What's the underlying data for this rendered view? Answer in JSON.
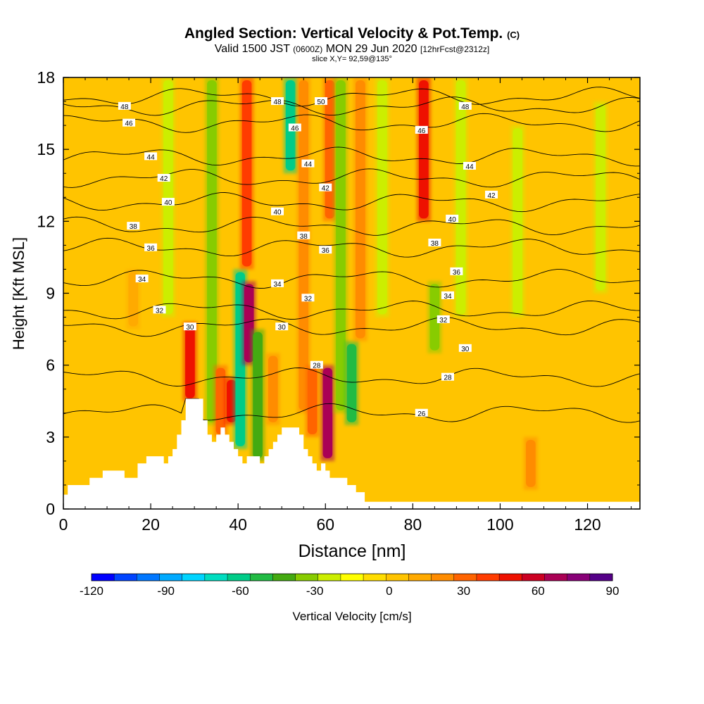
{
  "chart_data": {
    "type": "heatmap",
    "title": {
      "main": "Angled Section: Vertical Velocity & Pot.Temp.",
      "main_unit": "(C)",
      "valid_prefix": "Valid 1500 JST",
      "valid_utc": "(0600Z)",
      "valid_date": "MON 29 Jun 2020",
      "valid_fcst": "[12hrFcst@2312z]",
      "slice": "slice X,Y= 92,59@135°"
    },
    "xlabel": "Distance [nm]",
    "ylabel": "Height [Kft MSL]",
    "xlim": [
      0,
      132
    ],
    "ylim": [
      0,
      18
    ],
    "x_ticks": [
      0,
      20,
      40,
      60,
      80,
      100,
      120
    ],
    "x_tick_labels": [
      "0",
      "20",
      "40",
      "60",
      "80",
      "100",
      "120"
    ],
    "y_ticks": [
      0,
      3,
      6,
      9,
      12,
      15,
      18
    ],
    "y_tick_labels": [
      "0",
      "3",
      "6",
      "9",
      "12",
      "15",
      "18"
    ],
    "colorbar": {
      "label": "Vertical Velocity [cm/s]",
      "min": -120,
      "max": 90,
      "step": 10,
      "tick_values": [
        -120,
        -90,
        -60,
        -30,
        0,
        30,
        60,
        90
      ],
      "tick_labels": [
        "-120",
        "-90",
        "-60",
        "-30",
        "0",
        "30",
        "60",
        "90"
      ],
      "colors": [
        "#0000ff",
        "#0044ff",
        "#0077ff",
        "#00aaff",
        "#00d4ff",
        "#00ddc0",
        "#00cc88",
        "#22bb44",
        "#44aa11",
        "#88cc00",
        "#ccee00",
        "#ffff00",
        "#ffdd00",
        "#ffc400",
        "#ffaa00",
        "#ff8c00",
        "#ff6400",
        "#ff3c00",
        "#ee1100",
        "#cc0022",
        "#aa0055",
        "#880077",
        "#550088"
      ]
    },
    "vertical_velocity_columns": [
      {
        "x": 16,
        "ybot": 7.5,
        "ytop": 10,
        "value": 20
      },
      {
        "x": 24,
        "ybot": 8,
        "ytop": 18,
        "value": -20
      },
      {
        "x": 29,
        "ybot": 4.5,
        "ytop": 7.8,
        "value": 60
      },
      {
        "x": 34,
        "ybot": 3.5,
        "ytop": 18,
        "value": -30
      },
      {
        "x": 36,
        "ybot": 3,
        "ytop": 6,
        "value": 45
      },
      {
        "x": 38.5,
        "ybot": 3.5,
        "ytop": 5.5,
        "value": 62
      },
      {
        "x": 40.5,
        "ybot": 2.5,
        "ytop": 10,
        "value": -55
      },
      {
        "x": 42.5,
        "ybot": 6,
        "ytop": 9.5,
        "value": 85
      },
      {
        "x": 42,
        "ybot": 10,
        "ytop": 18,
        "value": 50
      },
      {
        "x": 44.5,
        "ybot": 2,
        "ytop": 7.5,
        "value": -40
      },
      {
        "x": 48,
        "ybot": 3.5,
        "ytop": 6.5,
        "value": 35
      },
      {
        "x": 52,
        "ybot": 14,
        "ytop": 18,
        "value": -60
      },
      {
        "x": 55,
        "ybot": 4,
        "ytop": 18,
        "value": 30
      },
      {
        "x": 57,
        "ybot": 3,
        "ytop": 6,
        "value": 45
      },
      {
        "x": 60.5,
        "ybot": 2,
        "ytop": 6,
        "value": 80
      },
      {
        "x": 61,
        "ybot": 12,
        "ytop": 18,
        "value": 45
      },
      {
        "x": 63.5,
        "ybot": 4,
        "ytop": 18,
        "value": -30
      },
      {
        "x": 66,
        "ybot": 3.5,
        "ytop": 7,
        "value": -45
      },
      {
        "x": 68,
        "ybot": 7,
        "ytop": 18,
        "value": 30
      },
      {
        "x": 73,
        "ybot": 8,
        "ytop": 18,
        "value": -20
      },
      {
        "x": 82.5,
        "ybot": 12,
        "ytop": 18,
        "value": 65
      },
      {
        "x": 85,
        "ybot": 6.5,
        "ytop": 9.5,
        "value": -30
      },
      {
        "x": 91,
        "ybot": 8,
        "ytop": 18,
        "value": -20
      },
      {
        "x": 104,
        "ybot": 8,
        "ytop": 16,
        "value": -15
      },
      {
        "x": 107,
        "ybot": 0.8,
        "ytop": 3,
        "value": 30
      },
      {
        "x": 123,
        "ybot": 9,
        "ytop": 17,
        "value": -15
      }
    ],
    "potential_temperature_contours": [
      {
        "value": 26,
        "label": "26",
        "label_x": 82,
        "label_y": 4,
        "base_y": 4
      },
      {
        "value": 28,
        "label": "28",
        "label_x": 58,
        "label_y": 6,
        "base_y": 5.5
      },
      {
        "value": 28,
        "label": "28",
        "label_x": 88,
        "label_y": 5.5,
        "base_y": 5.5
      },
      {
        "value": 30,
        "label": "30",
        "label_x": 29,
        "label_y": 7.6,
        "base_y": 7.6
      },
      {
        "value": 30,
        "label": "30",
        "label_x": 50,
        "label_y": 7.6,
        "base_y": 7.6
      },
      {
        "value": 30,
        "label": "30",
        "label_x": 92,
        "label_y": 6.7,
        "base_y": 6.7
      },
      {
        "value": 32,
        "label": "32",
        "label_x": 22,
        "label_y": 8.3,
        "base_y": 8.3
      },
      {
        "value": 32,
        "label": "32",
        "label_x": 56,
        "label_y": 8.8,
        "base_y": 8.8
      },
      {
        "value": 32,
        "label": "32",
        "label_x": 87,
        "label_y": 7.9,
        "base_y": 7.9
      },
      {
        "value": 34,
        "label": "34",
        "label_x": 18,
        "label_y": 9.6,
        "base_y": 9.6
      },
      {
        "value": 34,
        "label": "34",
        "label_x": 49,
        "label_y": 9.4,
        "base_y": 9.4
      },
      {
        "value": 34,
        "label": "34",
        "label_x": 88,
        "label_y": 8.9,
        "base_y": 8.9
      },
      {
        "value": 36,
        "label": "36",
        "label_x": 20,
        "label_y": 10.9,
        "base_y": 10.9
      },
      {
        "value": 36,
        "label": "36",
        "label_x": 60,
        "label_y": 10.8,
        "base_y": 10.8
      },
      {
        "value": 36,
        "label": "36",
        "label_x": 90,
        "label_y": 9.9,
        "base_y": 9.9
      },
      {
        "value": 38,
        "label": "38",
        "label_x": 16,
        "label_y": 11.8,
        "base_y": 11.8
      },
      {
        "value": 38,
        "label": "38",
        "label_x": 55,
        "label_y": 11.4,
        "base_y": 11.4
      },
      {
        "value": 38,
        "label": "38",
        "label_x": 85,
        "label_y": 11.1,
        "base_y": 11.1
      },
      {
        "value": 40,
        "label": "40",
        "label_x": 24,
        "label_y": 12.8,
        "base_y": 12.8
      },
      {
        "value": 40,
        "label": "40",
        "label_x": 49,
        "label_y": 12.4,
        "base_y": 12.4
      },
      {
        "value": 40,
        "label": "40",
        "label_x": 89,
        "label_y": 12.1,
        "base_y": 12.1
      },
      {
        "value": 42,
        "label": "42",
        "label_x": 23,
        "label_y": 13.8,
        "base_y": 13.8
      },
      {
        "value": 42,
        "label": "42",
        "label_x": 60,
        "label_y": 13.4,
        "base_y": 13.4
      },
      {
        "value": 42,
        "label": "42",
        "label_x": 98,
        "label_y": 13.1,
        "base_y": 13.1
      },
      {
        "value": 44,
        "label": "44",
        "label_x": 20,
        "label_y": 14.7,
        "base_y": 14.7
      },
      {
        "value": 44,
        "label": "44",
        "label_x": 56,
        "label_y": 14.4,
        "base_y": 14.4
      },
      {
        "value": 44,
        "label": "44",
        "label_x": 93,
        "label_y": 14.3,
        "base_y": 14.3
      },
      {
        "value": 46,
        "label": "46",
        "label_x": 15,
        "label_y": 16.1,
        "base_y": 16.1
      },
      {
        "value": 46,
        "label": "46",
        "label_x": 53,
        "label_y": 15.9,
        "base_y": 15.9
      },
      {
        "value": 46,
        "label": "46",
        "label_x": 82,
        "label_y": 15.8,
        "base_y": 15.8
      },
      {
        "value": 48,
        "label": "48",
        "label_x": 14,
        "label_y": 16.8,
        "base_y": 16.8
      },
      {
        "value": 48,
        "label": "48",
        "label_x": 49,
        "label_y": 17,
        "base_y": 17
      },
      {
        "value": 48,
        "label": "48",
        "label_x": 92,
        "label_y": 16.8,
        "base_y": 16.8
      },
      {
        "value": 50,
        "label": "50",
        "label_x": 59,
        "label_y": 17,
        "base_y": 17.2
      }
    ],
    "terrain_height_kft": [
      [
        0,
        0.6
      ],
      [
        1,
        1.0
      ],
      [
        5,
        1.0
      ],
      [
        6,
        1.3
      ],
      [
        9,
        1.6
      ],
      [
        13,
        1.6
      ],
      [
        14,
        1.3
      ],
      [
        16,
        1.3
      ],
      [
        17,
        1.9
      ],
      [
        19,
        2.2
      ],
      [
        22,
        2.2
      ],
      [
        23,
        1.9
      ],
      [
        24,
        2.2
      ],
      [
        25,
        2.5
      ],
      [
        26,
        3.1
      ],
      [
        27,
        3.7
      ],
      [
        28,
        4.6
      ],
      [
        31,
        4.6
      ],
      [
        32,
        3.7
      ],
      [
        33,
        3.1
      ],
      [
        34,
        2.8
      ],
      [
        35,
        3.1
      ],
      [
        36,
        3.4
      ],
      [
        37,
        3.1
      ],
      [
        38,
        2.8
      ],
      [
        39,
        2.5
      ],
      [
        40,
        2.2
      ],
      [
        41,
        1.9
      ],
      [
        42,
        2.2
      ],
      [
        45,
        1.9
      ],
      [
        46,
        2.2
      ],
      [
        47,
        2.5
      ],
      [
        48,
        2.8
      ],
      [
        49,
        3.1
      ],
      [
        50,
        3.4
      ],
      [
        53,
        3.4
      ],
      [
        54,
        3.1
      ],
      [
        55,
        2.5
      ],
      [
        56,
        2.2
      ],
      [
        57,
        1.9
      ],
      [
        58,
        1.6
      ],
      [
        59,
        1.9
      ],
      [
        60,
        1.6
      ],
      [
        61,
        1.3
      ],
      [
        63,
        1.3
      ],
      [
        65,
        1.0
      ],
      [
        67,
        0.7
      ],
      [
        69,
        0.3
      ],
      [
        132,
        0.3
      ]
    ]
  }
}
